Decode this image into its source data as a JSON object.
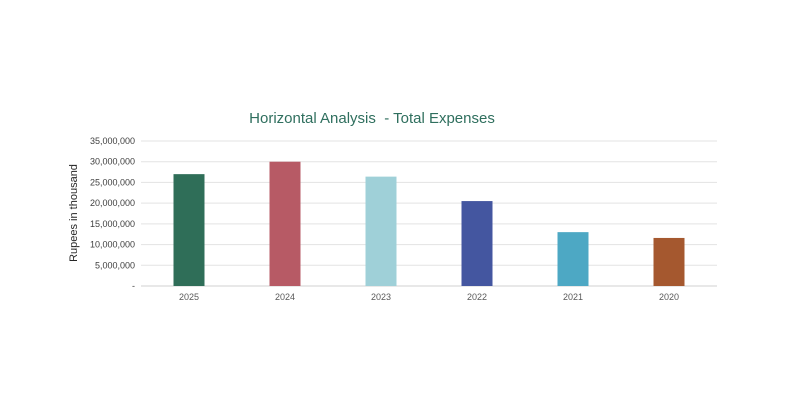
{
  "chart_data": {
    "type": "bar",
    "title": "Horizontal Analysis  - Total Expenses",
    "xlabel": "",
    "ylabel": "Rupees in thousand",
    "categories": [
      "2025",
      "2024",
      "2023",
      "2022",
      "2021",
      "2020"
    ],
    "values": [
      27000000,
      30000000,
      26400000,
      20500000,
      13000000,
      11600000
    ],
    "colors": [
      "#2f6e58",
      "#b75a65",
      "#9fd0d8",
      "#4456a0",
      "#4da8c4",
      "#a5582f"
    ],
    "ylim": [
      0,
      35000000
    ],
    "yticks": [
      0,
      5000000,
      10000000,
      15000000,
      20000000,
      25000000,
      30000000,
      35000000
    ],
    "ytick_labels": [
      "-",
      "5,000,000",
      "10,000,000",
      "15,000,000",
      "20,000,000",
      "25,000,000",
      "30,000,000",
      "35,000,000"
    ],
    "grid": true,
    "legend": "none"
  }
}
